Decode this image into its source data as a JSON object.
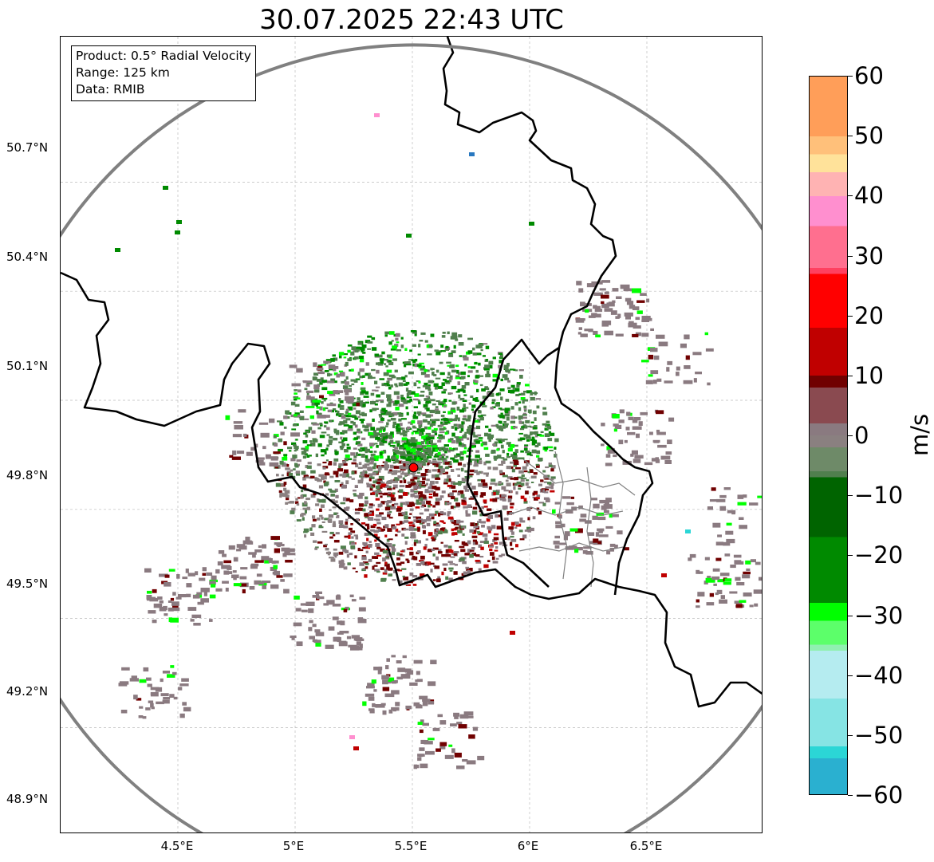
{
  "title": "30.07.2025 22:43 UTC",
  "info": {
    "product": "Product: 0.5° Radial Velocity",
    "range": "Range: 125 km",
    "source": "Data: RMIB"
  },
  "lat_labels": [
    "50.7°N",
    "50.4°N",
    "50.1°N",
    "49.8°N",
    "49.5°N",
    "49.2°N",
    "48.9°N"
  ],
  "lon_labels": [
    "4.5°E",
    "5°E",
    "5.5°E",
    "6°E",
    "6.5°E"
  ],
  "map": {
    "lon_range": [
      4.0,
      7.0
    ],
    "lat_range": [
      48.8,
      51.1
    ],
    "radar_site": {
      "lon": 5.505,
      "lat": 49.915
    },
    "range_ring_color": "#808080",
    "border_color": "#000000",
    "admin_border_color": "#808080",
    "radar_marker_color": "#ff0000"
  },
  "colorbar": {
    "unit": "m/s",
    "min": -60,
    "max": 60,
    "tick_labels": [
      "60",
      "50",
      "40",
      "30",
      "20",
      "10",
      "0",
      "−10",
      "−20",
      "−30",
      "−40",
      "−50",
      "−60"
    ],
    "stops": [
      {
        "v": 60,
        "color": "#ff9e59"
      },
      {
        "v": 50,
        "color": "#ffc07a"
      },
      {
        "v": 47,
        "color": "#ffe29a"
      },
      {
        "v": 44,
        "color": "#ffb3b3"
      },
      {
        "v": 40,
        "color": "#ff8fcf"
      },
      {
        "v": 35,
        "color": "#ff6f8f"
      },
      {
        "v": 28,
        "color": "#ff4060"
      },
      {
        "v": 27,
        "color": "#ff0000"
      },
      {
        "v": 18,
        "color": "#c00000"
      },
      {
        "v": 10,
        "color": "#700000"
      },
      {
        "v": 8,
        "color": "#8a4a50"
      },
      {
        "v": 2,
        "color": "#8a7a80"
      },
      {
        "v": 0,
        "color": "#8a8080"
      },
      {
        "v": -2,
        "color": "#6e8a68"
      },
      {
        "v": -6,
        "color": "#507f4d"
      },
      {
        "v": -7,
        "color": "#006400"
      },
      {
        "v": -17,
        "color": "#008a00"
      },
      {
        "v": -28,
        "color": "#00ff00"
      },
      {
        "v": -31,
        "color": "#5cff6a"
      },
      {
        "v": -35,
        "color": "#90f0b0"
      },
      {
        "v": -36,
        "color": "#b5ecf0"
      },
      {
        "v": -44,
        "color": "#86e4e4"
      },
      {
        "v": -52,
        "color": "#2bd6d6"
      },
      {
        "v": -54,
        "color": "#2ab0d0"
      },
      {
        "v": -60,
        "color": "#2878c0"
      }
    ]
  }
}
